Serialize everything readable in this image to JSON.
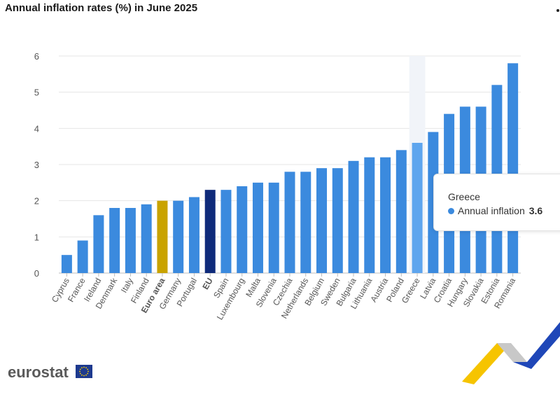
{
  "title": "Annual inflation rates (%) in June 2025",
  "brand": {
    "name": "eurostat"
  },
  "colors": {
    "bar": "#3b8ade",
    "bar_hover": "#5ea5ee",
    "euro_area": "#c9a300",
    "eu": "#0e2a7a",
    "hover_band": "#f1f4f9",
    "grid": "#e6e6e6"
  },
  "tooltip": {
    "category": "Greece",
    "series_name": "Annual inflation",
    "value": "3.6"
  },
  "chart_data": {
    "type": "bar",
    "title": "Annual inflation rates (%) in June 2025",
    "xlabel": "",
    "ylabel": "",
    "ylim": [
      0,
      6
    ],
    "yticks": [
      0,
      1,
      2,
      3,
      4,
      5,
      6
    ],
    "grid": true,
    "categories": [
      "Cyprus",
      "France",
      "Ireland",
      "Denmark",
      "Italy",
      "Finland",
      "Euro area",
      "Germany",
      "Portugal",
      "EU",
      "Spain",
      "Luxembourg",
      "Malta",
      "Slovenia",
      "Czechia",
      "Netherlands",
      "Belgium",
      "Sweden",
      "Bulgaria",
      "Lithuania",
      "Austria",
      "Poland",
      "Greece",
      "Latvia",
      "Croatia",
      "Hungary",
      "Slovakia",
      "Estonia",
      "Romania"
    ],
    "series": [
      {
        "name": "Annual inflation",
        "values": [
          0.5,
          0.9,
          1.6,
          1.8,
          1.8,
          1.9,
          2.0,
          2.0,
          2.1,
          2.3,
          2.3,
          2.4,
          2.5,
          2.5,
          2.8,
          2.8,
          2.9,
          2.9,
          3.1,
          3.2,
          3.2,
          3.4,
          3.6,
          3.9,
          4.4,
          4.6,
          4.6,
          5.2,
          5.8
        ]
      }
    ],
    "highlights": {
      "Euro area": "euro_area",
      "EU": "eu",
      "Greece": "bar_hover"
    },
    "bold_labels": [
      "Euro area",
      "EU"
    ]
  }
}
